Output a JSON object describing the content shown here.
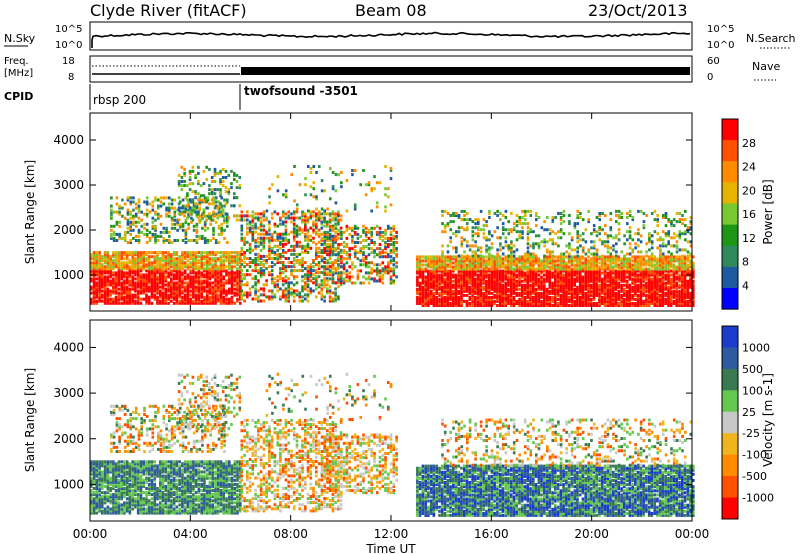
{
  "header": {
    "station": "Clyde River (fitACF)",
    "beam": "Beam 08",
    "date": "23/Oct/2013"
  },
  "strip_panels": {
    "nsky_label": "N.Sky",
    "nsky_ticks": [
      "10^5",
      "10^0"
    ],
    "nsearch_label": "N.Search",
    "nsearch_ticks": [
      "10^5",
      "10^0"
    ],
    "freq_label_1": "Freq.",
    "freq_label_2": "[MHz]",
    "freq_ticks": [
      "18",
      "8"
    ],
    "nave_label": "Nave",
    "nave_ticks": [
      "60",
      "0"
    ],
    "cpid_label": "CPID",
    "cpid_segments": [
      {
        "label": "rbsp 200",
        "start_hour": 0
      },
      {
        "label": "twofsound -3501",
        "start_hour": 6
      }
    ]
  },
  "chart_data": [
    {
      "type": "heatmap",
      "name": "power",
      "ylabel": "Slant Range [km]",
      "ylim": [
        200,
        4600
      ],
      "yticks": [
        "1000",
        "2000",
        "3000",
        "4000"
      ],
      "xlim": [
        0,
        24
      ],
      "colorbar_label": "Power [dB]",
      "colorbar_ticks": [
        "28",
        "24",
        "20",
        "16",
        "12",
        "8",
        "4"
      ],
      "colorbar_colors": [
        "#ff0000",
        "#ff5000",
        "#ff8c00",
        "#e6b400",
        "#78c832",
        "#1e9614",
        "#2f8a5a",
        "#1e5aa0",
        "#0000ff"
      ]
    },
    {
      "type": "heatmap",
      "name": "velocity",
      "ylabel": "Slant Range [km]",
      "ylim": [
        200,
        4600
      ],
      "yticks": [
        "1000",
        "2000",
        "3000",
        "4000"
      ],
      "xlim": [
        0,
        24
      ],
      "colorbar_label": "Velocity [m s-1]",
      "colorbar_ticks": [
        "1000",
        "500",
        "100",
        "25",
        "-25",
        "-100",
        "-500",
        "-1000"
      ],
      "colorbar_colors": [
        "#1a3ccc",
        "#2d5aa0",
        "#3a7a52",
        "#64c850",
        "#c8c8c8",
        "#f0b41e",
        "#ff8c00",
        "#ff5000",
        "#ff0000"
      ]
    }
  ],
  "xaxis": {
    "ticks": [
      "00:00",
      "04:00",
      "08:00",
      "12:00",
      "16:00",
      "20:00",
      "00:00"
    ],
    "label": "Time UT"
  }
}
